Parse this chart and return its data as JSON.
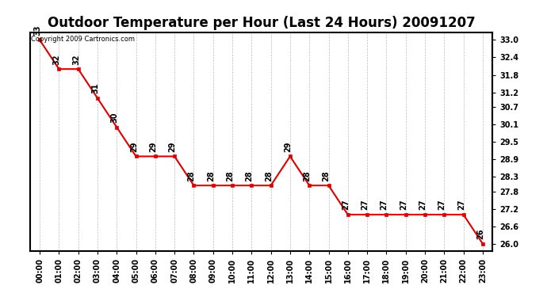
{
  "title": "Outdoor Temperature per Hour (Last 24 Hours) 20091207",
  "copyright_text": "Copyright 2009 Cartronics.com",
  "hours": [
    "00:00",
    "01:00",
    "02:00",
    "03:00",
    "04:00",
    "05:00",
    "06:00",
    "07:00",
    "08:00",
    "09:00",
    "10:00",
    "11:00",
    "12:00",
    "13:00",
    "14:00",
    "15:00",
    "16:00",
    "17:00",
    "18:00",
    "19:00",
    "20:00",
    "21:00",
    "22:00",
    "23:00"
  ],
  "temperatures": [
    33.0,
    32.0,
    32.0,
    31.0,
    30.0,
    29.0,
    29.0,
    29.0,
    28.0,
    28.0,
    28.0,
    28.0,
    28.0,
    29.0,
    28.0,
    28.0,
    27.0,
    27.0,
    27.0,
    27.0,
    27.0,
    27.0,
    27.0,
    26.0
  ],
  "line_color": "#dd0000",
  "marker_color": "#dd0000",
  "bg_color": "#ffffff",
  "plot_bg_color": "#ffffff",
  "grid_color": "#bbbbbb",
  "yticks_right": [
    26.0,
    26.6,
    27.2,
    27.8,
    28.3,
    28.9,
    29.5,
    30.1,
    30.7,
    31.2,
    31.8,
    32.4,
    33.0
  ],
  "ylim": [
    25.75,
    33.25
  ],
  "title_fontsize": 12,
  "annot_fontsize": 7,
  "tick_fontsize": 7,
  "copyright_fontsize": 6
}
